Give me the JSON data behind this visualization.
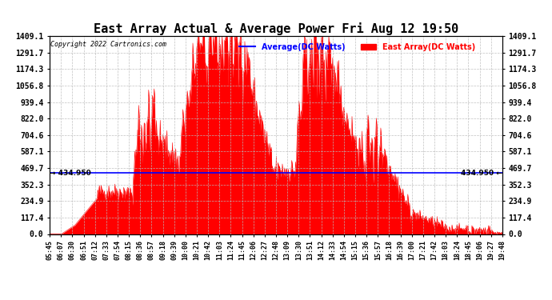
{
  "title": "East Array Actual & Average Power Fri Aug 12 19:50",
  "copyright": "Copyright 2022 Cartronics.com",
  "legend_avg": "Average(DC Watts)",
  "legend_east": "East Array(DC Watts)",
  "avg_value": 434.95,
  "ymin": 0.0,
  "ymax": 1409.1,
  "yticks": [
    0.0,
    117.4,
    234.9,
    352.3,
    469.7,
    587.1,
    704.6,
    822.0,
    939.4,
    1056.8,
    1174.3,
    1291.7,
    1409.1
  ],
  "xtick_labels": [
    "05:45",
    "06:07",
    "06:30",
    "06:51",
    "07:12",
    "07:33",
    "07:54",
    "08:15",
    "08:36",
    "08:57",
    "09:18",
    "09:39",
    "10:00",
    "10:21",
    "10:42",
    "11:03",
    "11:24",
    "11:45",
    "12:06",
    "12:27",
    "12:48",
    "13:09",
    "13:30",
    "13:51",
    "14:12",
    "14:33",
    "14:54",
    "15:15",
    "15:36",
    "15:57",
    "16:18",
    "16:39",
    "17:00",
    "17:21",
    "17:42",
    "18:03",
    "18:24",
    "18:45",
    "19:06",
    "19:27",
    "19:48"
  ],
  "bg_color": "#ffffff",
  "fill_color": "#ff0000",
  "avg_line_color": "#0000ff",
  "grid_color": "#bbbbbb",
  "title_color": "#000000",
  "copyright_color": "#000000",
  "legend_avg_color": "#0000ff",
  "legend_east_color": "#ff0000"
}
